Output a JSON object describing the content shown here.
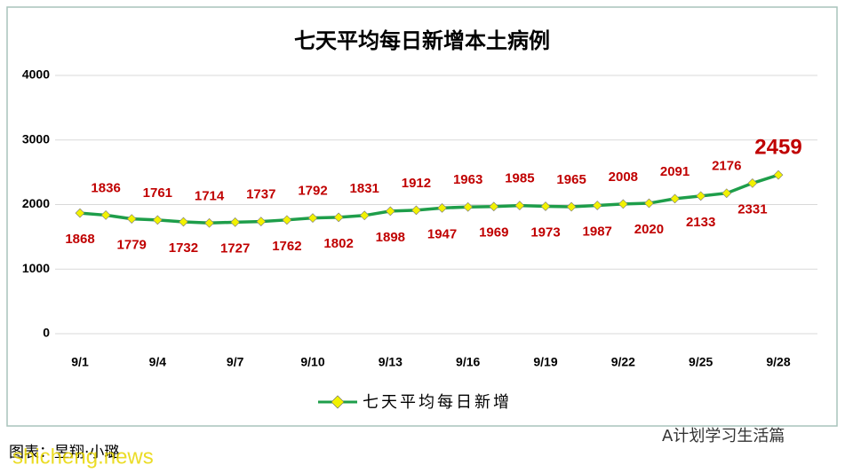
{
  "chart_data": {
    "type": "line",
    "title": "七天平均每日新增本土病例",
    "categories": [
      "9/1",
      null,
      null,
      "9/4",
      null,
      null,
      "9/7",
      null,
      null,
      "9/10",
      null,
      null,
      "9/13",
      null,
      null,
      "9/16",
      null,
      null,
      "9/19",
      null,
      null,
      "9/22",
      null,
      null,
      "9/25",
      null,
      null,
      "9/28"
    ],
    "series": [
      {
        "name": "七天平均每日新增",
        "color": "#1e9e4a",
        "marker_color": "#f2f200",
        "values": [
          1868,
          1836,
          1779,
          1761,
          1732,
          1714,
          1727,
          1737,
          1762,
          1792,
          1802,
          1831,
          1898,
          1912,
          1947,
          1963,
          1969,
          1985,
          1973,
          1965,
          1987,
          2008,
          2020,
          2091,
          2133,
          2176,
          2331,
          2459
        ]
      }
    ],
    "label_color": "#c00000",
    "ylim": [
      0,
      4000
    ],
    "yticks": [
      0,
      1000,
      2000,
      3000,
      4000
    ],
    "grid": true,
    "legend": "bottom",
    "footer": {
      "source": "图表：昱翔·小璐",
      "watermark": "shicheng.news",
      "account": "A计划学习生活篇"
    }
  }
}
